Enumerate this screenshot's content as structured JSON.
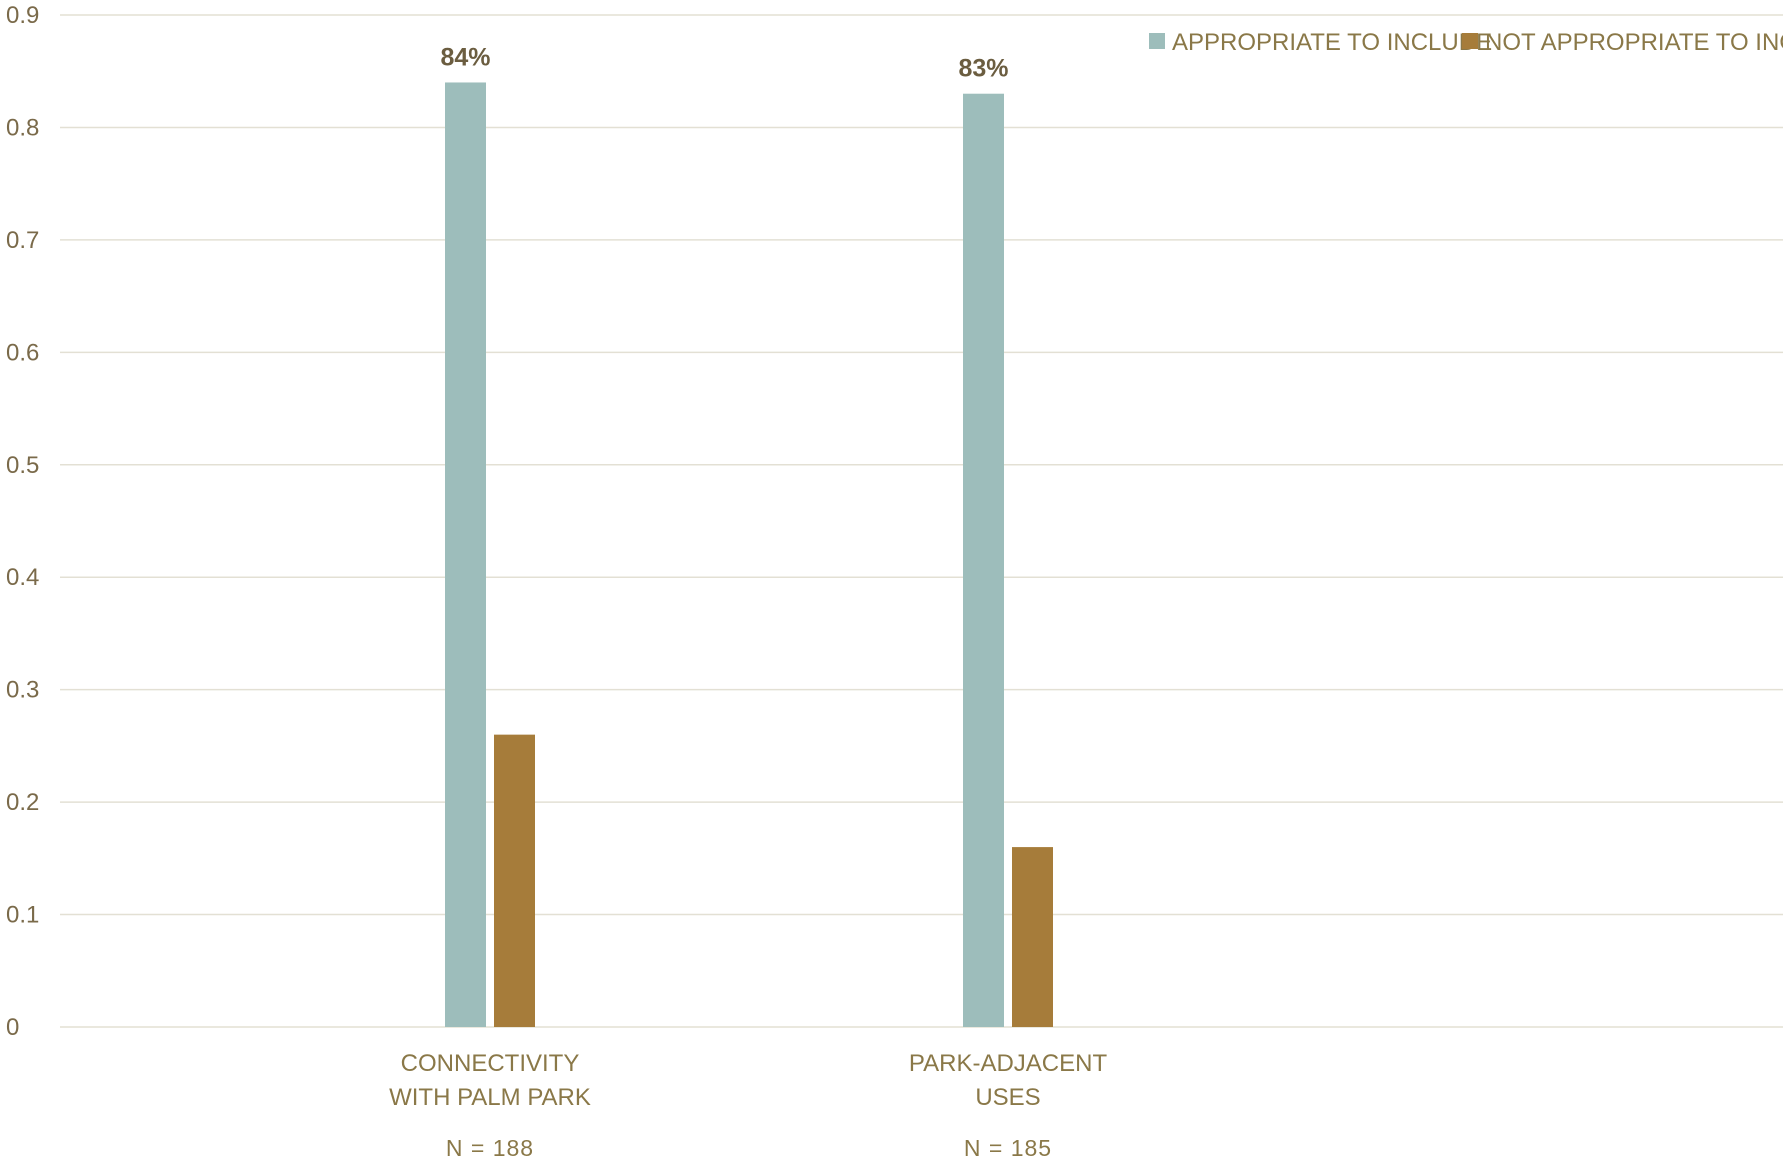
{
  "chart_data": {
    "type": "bar",
    "categories": [
      [
        "CONNECTIVITY",
        "WITH PALM PARK"
      ],
      [
        "PARK-ADJACENT",
        "USES"
      ]
    ],
    "sample_sizes": [
      "N = 188",
      "N = 185"
    ],
    "series": [
      {
        "name": "APPROPRIATE TO INCLUDE",
        "values": [
          0.84,
          0.83
        ],
        "color": "#9dbdbb",
        "data_labels": [
          "84%",
          "83%"
        ]
      },
      {
        "name": "NOT APPROPRIATE TO INCLUDE",
        "values": [
          0.26,
          0.16
        ],
        "color": "#a67c3a",
        "data_labels": [
          "",
          ""
        ]
      }
    ],
    "ylim": [
      0,
      0.9
    ],
    "yticks": [
      "0",
      "0.1",
      "0.2",
      "0.3",
      "0.4",
      "0.5",
      "0.6",
      "0.7",
      "0.8",
      "0.9"
    ],
    "grid": true,
    "legend_position": "top-right",
    "title": "",
    "xlabel": "",
    "ylabel": ""
  }
}
